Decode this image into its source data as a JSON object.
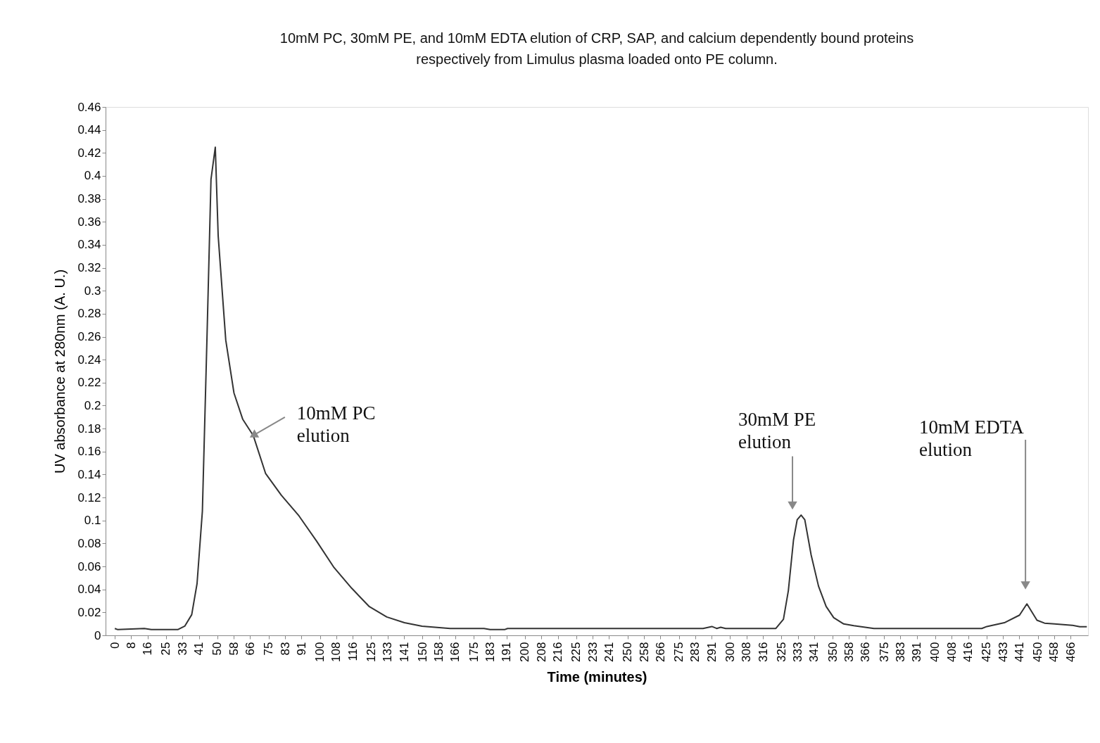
{
  "chart_data": {
    "type": "line",
    "title": "10mM PC, 30mM PE, and 10mM EDTA elution of CRP, SAP, and calcium dependently bound proteins respectively from Limulus plasma loaded onto PE column.",
    "xlabel": "Time (minutes)",
    "ylabel": "UV absorbance at 280nm (A. U.)",
    "series": [
      {
        "color": "#333333",
        "x": [
          0,
          1.5,
          14.4,
          17.8,
          30.7,
          34.1,
          37.5,
          40.1,
          42.7,
          44.9,
          46.9,
          49.0,
          50.4,
          54.1,
          58.1,
          62.4,
          67.5,
          73.5,
          81.2,
          89.8,
          98.4,
          106.9,
          115.5,
          124.1,
          132.6,
          141.2,
          149.8,
          163.5,
          180,
          183,
          190,
          191.5,
          193,
          240,
          286.8,
          291.1,
          293.5,
          295.4,
          297.8,
          322.3,
          326.0,
          328.4,
          330.9,
          332.7,
          334.6,
          336.4,
          339.5,
          343.1,
          346.8,
          350.5,
          355.4,
          360.3,
          370.1,
          422.7,
          425.2,
          433.7,
          441.1,
          444.7,
          449.6,
          453.3,
          458.2,
          466.8,
          470.5,
          473.9
        ],
        "values": [
          0.006,
          0.005,
          0.006,
          0.005,
          0.005,
          0.008,
          0.018,
          0.045,
          0.108,
          0.256,
          0.397,
          0.425,
          0.348,
          0.257,
          0.211,
          0.188,
          0.174,
          0.141,
          0.122,
          0.104,
          0.082,
          0.059,
          0.041,
          0.025,
          0.016,
          0.011,
          0.008,
          0.006,
          0.006,
          0.005,
          0.005,
          0.006,
          0.006,
          0.006,
          0.006,
          0.0077,
          0.006,
          0.007,
          0.006,
          0.006,
          0.014,
          0.039,
          0.083,
          0.1007,
          0.1047,
          0.1007,
          0.07,
          0.0428,
          0.0252,
          0.0154,
          0.0099,
          0.0084,
          0.006,
          0.006,
          0.0077,
          0.011,
          0.0176,
          0.0274,
          0.0132,
          0.0106,
          0.0099,
          0.0088,
          0.0075,
          0.0075
        ]
      }
    ],
    "xlim": [
      -4.5,
      474.5
    ],
    "xticks": [
      0,
      8,
      16,
      25,
      33,
      41,
      50,
      58,
      66,
      75,
      83,
      91,
      100,
      108,
      116,
      125,
      133,
      141,
      150,
      158,
      166,
      175,
      183,
      191,
      200,
      208,
      216,
      225,
      233,
      241,
      250,
      258,
      266,
      275,
      283,
      291,
      300,
      308,
      316,
      325,
      333,
      341,
      350,
      358,
      366,
      375,
      383,
      391,
      400,
      408,
      416,
      425,
      433,
      441,
      450,
      458,
      466
    ],
    "ylim": [
      0,
      0.46
    ],
    "yticks": [
      0,
      0.02,
      0.04,
      0.06,
      0.08,
      0.1,
      0.12,
      0.14,
      0.16,
      0.18,
      0.2,
      0.22,
      0.24,
      0.26,
      0.28,
      0.3,
      0.32,
      0.34,
      0.36,
      0.38,
      0.4,
      0.42,
      0.44,
      0.46
    ],
    "annotations": [
      {
        "text": "10mM PC elution",
        "x": 67.5,
        "y": 0.174
      },
      {
        "text": "30mM PE elution",
        "x": 330.4,
        "y": 0.113
      },
      {
        "text": "10mM EDTA elution",
        "x": 444,
        "y": 0.0435
      }
    ],
    "grid": false,
    "marker": "none",
    "line_style": "solid"
  }
}
